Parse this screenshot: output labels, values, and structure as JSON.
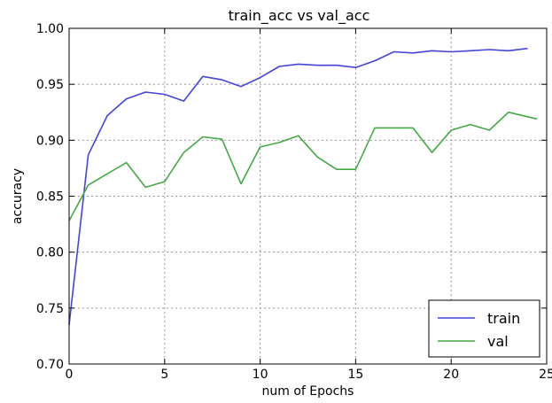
{
  "chart_data": {
    "type": "line",
    "title": "train_acc vs  val_acc",
    "xlabel": "num of Epochs",
    "ylabel": "accuracy",
    "xlim": [
      0,
      25
    ],
    "ylim": [
      0.7,
      1.0
    ],
    "xticks": [
      0,
      5,
      10,
      15,
      20,
      25
    ],
    "yticks": [
      0.7,
      0.75,
      0.8,
      0.85,
      0.9,
      0.95,
      1.0
    ],
    "xtick_labels": [
      "0",
      "5",
      "10",
      "15",
      "20",
      "25"
    ],
    "ytick_labels": [
      "0.70",
      "0.75",
      "0.80",
      "0.85",
      "0.90",
      "0.95",
      "1.00"
    ],
    "grid": true,
    "legend_position": "bottom-right",
    "series": [
      {
        "name": "train",
        "color": "#4444dd",
        "x": [
          0,
          1,
          2,
          3,
          4,
          5,
          6,
          7,
          8,
          9,
          10,
          11,
          12,
          13,
          14,
          15,
          16,
          17,
          18,
          19,
          20,
          21,
          22,
          23,
          24
        ],
        "y": [
          0.735,
          0.887,
          0.922,
          0.937,
          0.943,
          0.941,
          0.935,
          0.957,
          0.954,
          0.948,
          0.956,
          0.966,
          0.968,
          0.967,
          0.967,
          0.965,
          0.971,
          0.979,
          0.978,
          0.98,
          0.979,
          0.98,
          0.981,
          0.98,
          0.982
        ]
      },
      {
        "name": "val",
        "color": "#44aa44",
        "x": [
          0,
          1,
          2,
          3,
          4,
          5,
          6,
          7,
          8,
          9,
          10,
          11,
          12,
          13,
          14,
          15,
          16,
          17,
          18,
          19,
          20,
          21,
          22,
          23,
          24,
          24.5
        ],
        "y": [
          0.828,
          0.86,
          0.87,
          0.88,
          0.858,
          0.863,
          0.889,
          0.903,
          0.901,
          0.861,
          0.894,
          0.898,
          0.904,
          0.885,
          0.874,
          0.874,
          0.911,
          0.911,
          0.911,
          0.889,
          0.909,
          0.914,
          0.909,
          0.925,
          0.921,
          0.919
        ]
      }
    ]
  }
}
